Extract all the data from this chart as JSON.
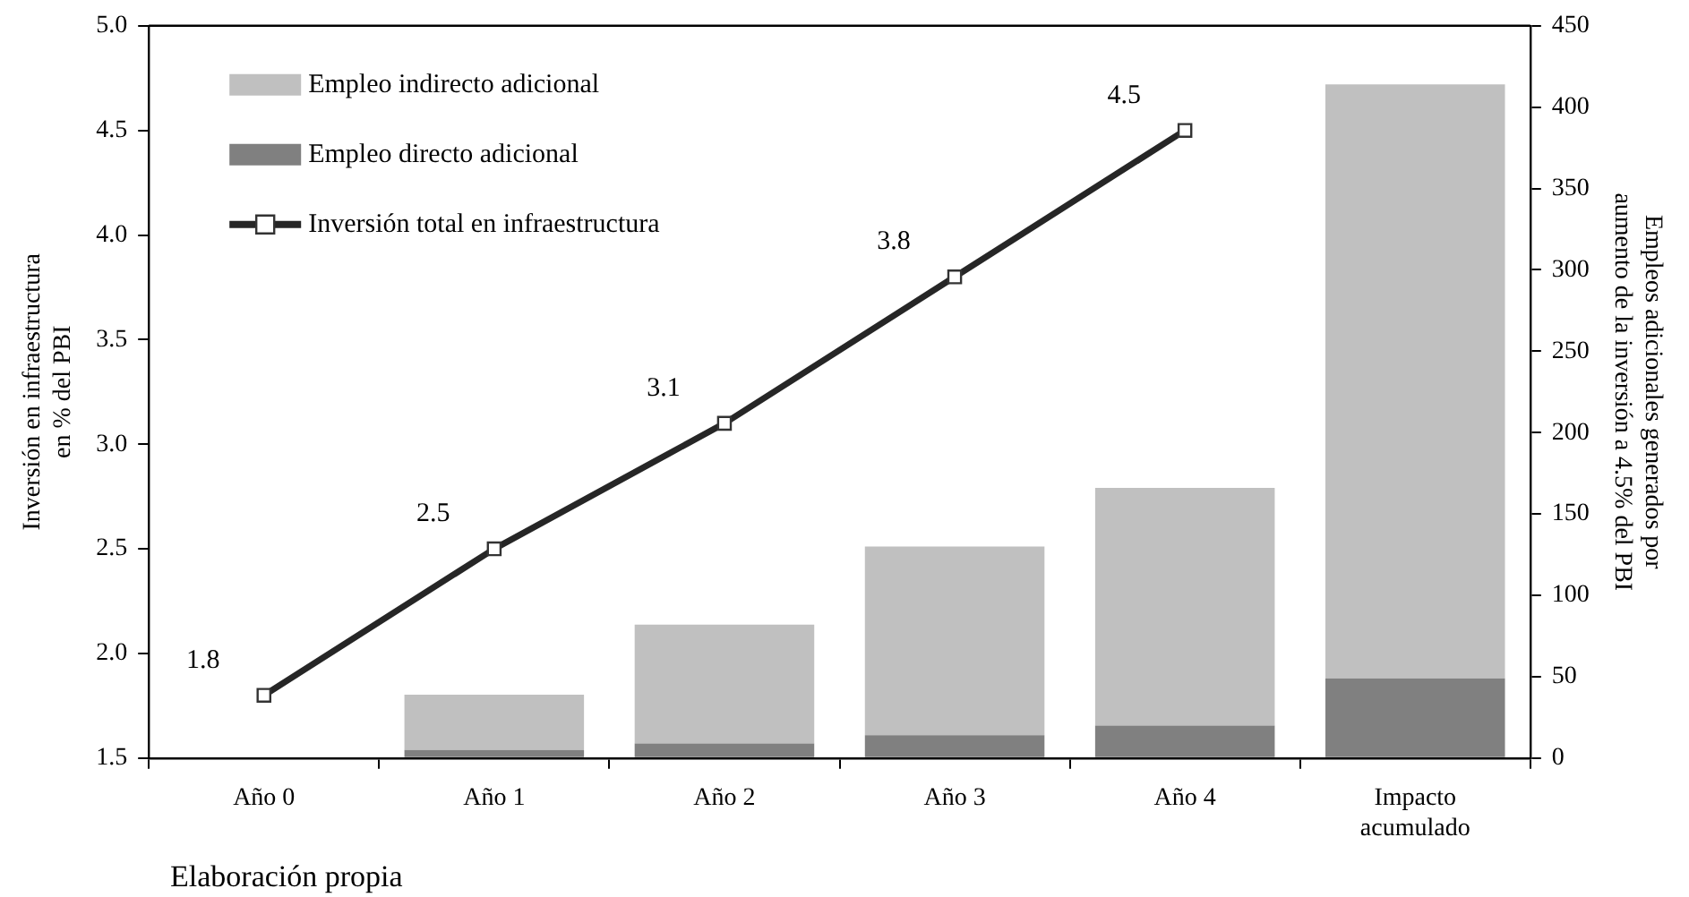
{
  "chart_data": {
    "type": "bar",
    "stacked": true,
    "categories": [
      "Año 0",
      "Año 1",
      "Año 2",
      "Año 3",
      "Año 4",
      "Impacto acumulado"
    ],
    "series": [
      {
        "name": "Empleo directo adicional",
        "color": "#808080",
        "axis": "y2",
        "values": [
          null,
          5,
          9,
          14,
          20,
          49
        ]
      },
      {
        "name": "Empleo indirecto adicional",
        "color": "#c0c0c0",
        "axis": "y2",
        "values": [
          null,
          34,
          73,
          116,
          146,
          365
        ]
      },
      {
        "name": "Inversión total en infraestructura",
        "type": "line",
        "color": "#262626",
        "marker": "square",
        "values": [
          1.8,
          2.5,
          3.1,
          3.8,
          4.5,
          null
        ],
        "value_labels": [
          "1.8",
          "2.5",
          "3.1",
          "3.8",
          "4.5",
          null
        ]
      }
    ],
    "ylabel": "Inversión en infraestructura en % del PBI",
    "y2label": "Empleos adicionales generados por aumento de la inversión a 4.5% del PBI",
    "ylim": [
      1.5,
      5.0
    ],
    "yticks": [
      {
        "value": 1.5,
        "label": "1.5"
      },
      {
        "value": 2.0,
        "label": "2.0"
      },
      {
        "value": 2.5,
        "label": "2.5"
      },
      {
        "value": 3.0,
        "label": "3.0"
      },
      {
        "value": 3.5,
        "label": "3.5"
      },
      {
        "value": 4.0,
        "label": "4.0"
      },
      {
        "value": 4.5,
        "label": "4.5"
      },
      {
        "value": 5.0,
        "label": "5.0"
      }
    ],
    "y2lim": [
      0,
      450
    ],
    "y2ticks": [
      0,
      50,
      100,
      150,
      200,
      250,
      300,
      350,
      400,
      450
    ],
    "grid": false,
    "legend": "top left",
    "annotations": [
      "Elaboración propia"
    ]
  }
}
